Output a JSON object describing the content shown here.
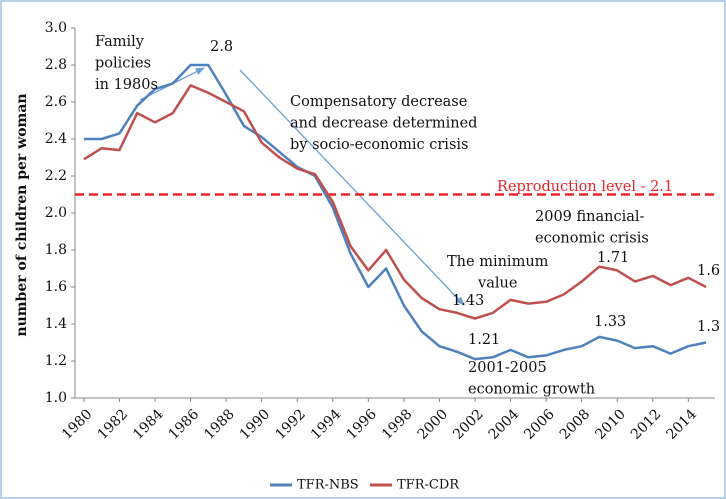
{
  "chart_data": {
    "type": "line",
    "y_label": "number of children per woman",
    "x": [
      1980,
      1981,
      1982,
      1983,
      1984,
      1985,
      1986,
      1987,
      1988,
      1989,
      1990,
      1991,
      1992,
      1993,
      1994,
      1995,
      1996,
      1997,
      1998,
      1999,
      2000,
      2001,
      2002,
      2003,
      2004,
      2005,
      2006,
      2007,
      2008,
      2009,
      2010,
      2011,
      2012,
      2013,
      2014,
      2015
    ],
    "series": [
      {
        "name": "TFR-NBS",
        "color": "#4f81bd",
        "values": [
          2.4,
          2.4,
          2.43,
          2.58,
          2.67,
          2.7,
          2.8,
          2.8,
          2.64,
          2.47,
          2.41,
          2.33,
          2.25,
          2.2,
          2.03,
          1.78,
          1.6,
          1.7,
          1.5,
          1.36,
          1.28,
          1.25,
          1.21,
          1.22,
          1.26,
          1.22,
          1.23,
          1.26,
          1.28,
          1.33,
          1.31,
          1.27,
          1.28,
          1.24,
          1.28,
          1.3
        ]
      },
      {
        "name": "TFR-CDR",
        "color": "#c0504d",
        "values": [
          2.29,
          2.35,
          2.34,
          2.54,
          2.49,
          2.54,
          2.69,
          2.65,
          2.6,
          2.55,
          2.38,
          2.3,
          2.24,
          2.21,
          2.06,
          1.82,
          1.69,
          1.8,
          1.64,
          1.54,
          1.48,
          1.46,
          1.43,
          1.46,
          1.53,
          1.51,
          1.52,
          1.56,
          1.63,
          1.71,
          1.69,
          1.63,
          1.66,
          1.61,
          1.65,
          1.6
        ]
      }
    ],
    "xlim": [
      1979.5,
      2015.5
    ],
    "xticks": [
      1980,
      1982,
      1984,
      1986,
      1988,
      1990,
      1992,
      1994,
      1996,
      1998,
      2000,
      2002,
      2004,
      2006,
      2008,
      2010,
      2012,
      2014
    ],
    "ylim": [
      1.0,
      3.0
    ],
    "yticks": [
      {
        "value": 1.0,
        "label": "1.0"
      },
      1.2,
      1.4,
      1.6,
      1.8,
      {
        "value": 2.0,
        "label": "2.0"
      },
      2.2,
      2.4,
      2.6,
      2.8,
      {
        "value": 3.0,
        "label": "3.0"
      }
    ],
    "reference_line": {
      "value": 2.1,
      "label": "Reproduction level - 2.1",
      "color": "#e8262a"
    },
    "annotations": [
      [
        "Family",
        "policies",
        "in 1980s"
      ],
      [
        "2.8"
      ],
      [
        "Compensatory decrease",
        "and decrease determined",
        "by socio-economic crisis"
      ],
      [
        "2009 financial-",
        "economic crisis"
      ],
      [
        "The minimum",
        "value"
      ],
      [
        "1.43"
      ],
      [
        "1.21"
      ],
      [
        "2001-2005",
        "economic growth"
      ],
      [
        "1.33"
      ],
      [
        "1.71"
      ],
      [
        "1.6"
      ],
      [
        "1.3"
      ]
    ],
    "legend": "bottom"
  }
}
